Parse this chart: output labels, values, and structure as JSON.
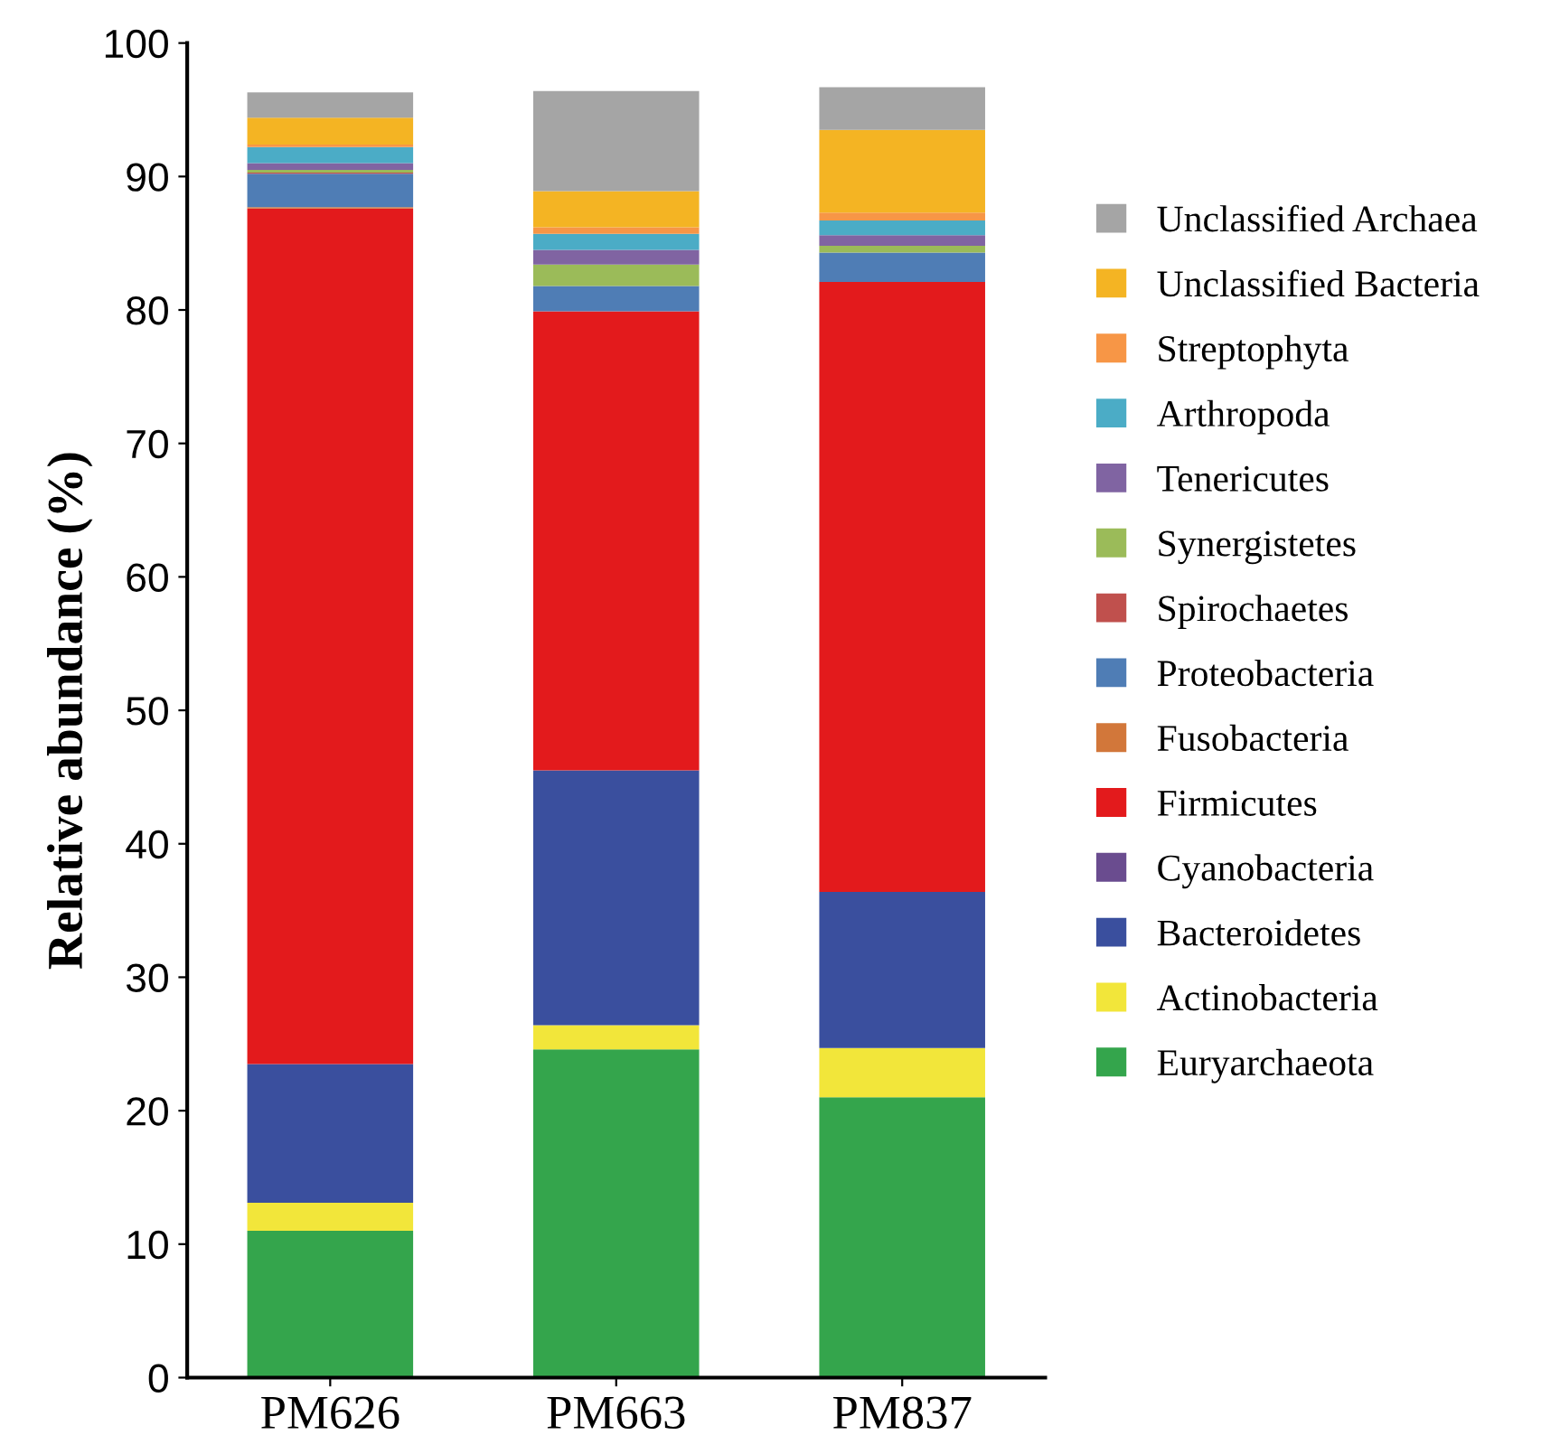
{
  "chart_data": {
    "type": "bar",
    "stacked": true,
    "ylabel": "Relative abundance (%)",
    "categories": [
      "PM626",
      "PM663",
      "PM837"
    ],
    "ylim": [
      0,
      100
    ],
    "yticks": [
      0,
      10,
      20,
      30,
      40,
      50,
      60,
      70,
      80,
      90,
      100
    ],
    "grid": false,
    "legend": "right",
    "series": [
      {
        "name": "Euryarchaeota",
        "color": "#34a54c",
        "values": [
          11.0,
          24.6,
          21.0
        ]
      },
      {
        "name": "Actinobacteria",
        "color": "#f2e63a",
        "values": [
          2.1,
          1.8,
          3.7
        ]
      },
      {
        "name": "Bacteroidetes",
        "color": "#3a4f9e",
        "values": [
          10.4,
          19.1,
          11.7
        ]
      },
      {
        "name": "Cyanobacteria",
        "color": "#6a4c8f",
        "values": [
          0,
          0,
          0
        ]
      },
      {
        "name": "Firmicutes",
        "color": "#e31a1c",
        "values": [
          64.1,
          34.4,
          45.7
        ]
      },
      {
        "name": "Fusobacteria",
        "color": "#d2773a",
        "values": [
          0.1,
          0,
          0
        ]
      },
      {
        "name": "Proteobacteria",
        "color": "#4f7db5",
        "values": [
          2.5,
          1.9,
          2.2
        ]
      },
      {
        "name": "Spirochaetes",
        "color": "#c0504d",
        "values": [
          0.1,
          0,
          0
        ]
      },
      {
        "name": "Synergistetes",
        "color": "#9bbb59",
        "values": [
          0.2,
          1.6,
          0.5
        ]
      },
      {
        "name": "Tenericutes",
        "color": "#8064a2",
        "values": [
          0.5,
          1.1,
          0.8
        ]
      },
      {
        "name": "Arthropoda",
        "color": "#4bacc6",
        "values": [
          1.2,
          1.2,
          1.1
        ]
      },
      {
        "name": "Streptophyta",
        "color": "#f79646",
        "values": [
          0.2,
          0.5,
          0.6
        ]
      },
      {
        "name": "Unclassified Bacteria",
        "color": "#f4b423",
        "values": [
          2.0,
          2.7,
          6.2
        ]
      },
      {
        "name": "Unclassified Archaea",
        "color": "#a5a5a5",
        "values": [
          1.9,
          7.5,
          3.2
        ]
      }
    ]
  }
}
